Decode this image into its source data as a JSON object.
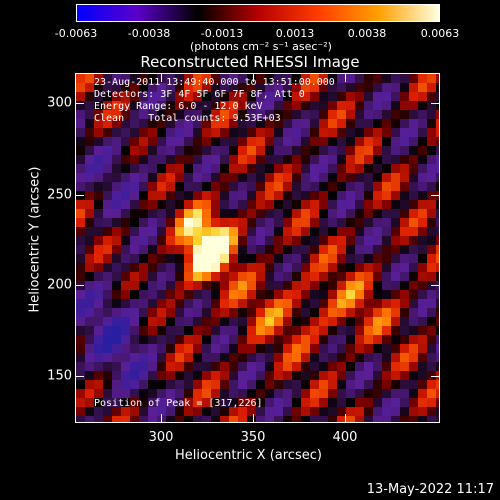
{
  "colorbar": {
    "ticks": [
      "-0.0063",
      "-0.0038",
      "-0.0013",
      "0.0013",
      "0.0038",
      "0.0063"
    ],
    "units": "(photons cm⁻² s⁻¹ asec⁻²)",
    "colors": [
      "#0000ff",
      "#5b00c8",
      "#000000",
      "#b40000",
      "#ff3c00",
      "#ffa000",
      "#ffffe0"
    ]
  },
  "title": "Reconstructed RHESSI Image",
  "info": {
    "time": "23-Aug-2011 13:49:40.000 to 13:51:00.000",
    "detectors": "Detectors: 3F 4F 5F 6F 7F 8F, Att 0",
    "energy": "Energy Range: 6.0 - 12.0 keV",
    "clean": "Clean    Total counts: 9.53E+03",
    "peak": "Position of Peak = [317,226]"
  },
  "axes": {
    "xlabel": "Heliocentric X (arcsec)",
    "ylabel": "Heliocentric Y (arcsec)",
    "xticks": [
      "300",
      "350",
      "400"
    ],
    "yticks": [
      "300",
      "250",
      "200",
      "150"
    ]
  },
  "footer": "13-May-2022 11:17"
}
